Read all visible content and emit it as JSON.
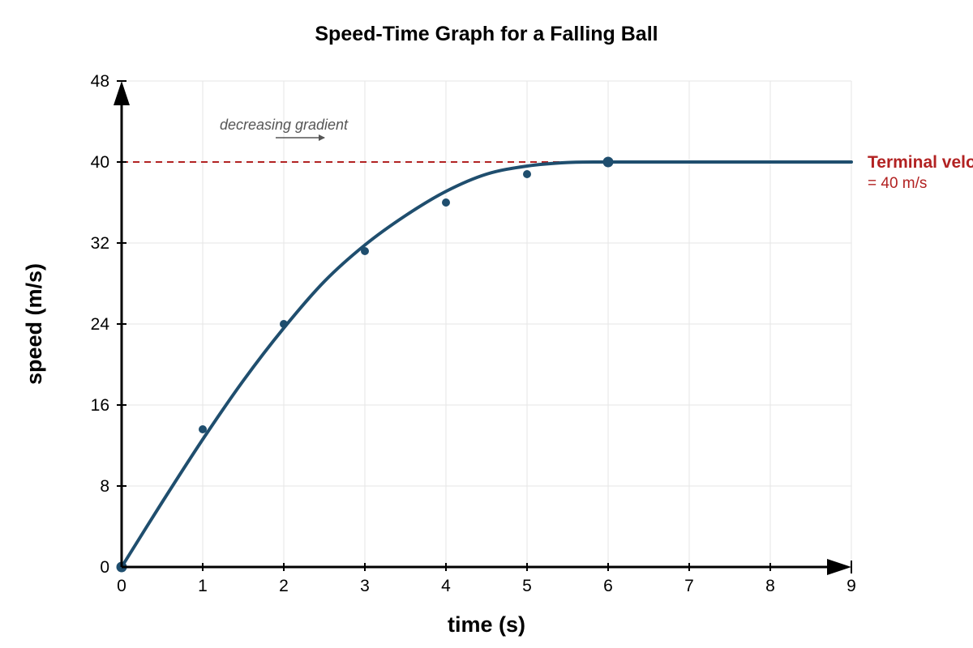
{
  "chart_data": {
    "type": "line",
    "title": "Speed-Time Graph for a Falling Ball",
    "xlabel": "time (s)",
    "ylabel": "speed (m/s)",
    "xlim": [
      0,
      9
    ],
    "ylim": [
      0,
      48
    ],
    "x_ticks": [
      0,
      1,
      2,
      3,
      4,
      5,
      6,
      7,
      8,
      9
    ],
    "y_ticks": [
      0,
      8,
      16,
      24,
      32,
      40,
      48
    ],
    "grid": true,
    "series": [
      {
        "kind": "curve",
        "x": [
          0,
          0.5,
          1,
          1.5,
          2,
          2.5,
          3,
          3.5,
          4,
          4.5,
          5,
          5.5,
          6,
          7,
          8,
          9
        ],
        "y": [
          0,
          6.4,
          12.6,
          18.4,
          23.6,
          28.2,
          31.8,
          34.7,
          37.1,
          38.8,
          39.6,
          39.95,
          40,
          40,
          40,
          40
        ]
      },
      {
        "kind": "points",
        "x": [
          1,
          2,
          3,
          4,
          5
        ],
        "y": [
          13.6,
          24,
          31.2,
          36,
          38.8
        ]
      },
      {
        "kind": "key-points",
        "x": [
          0,
          6
        ],
        "y": [
          0,
          40
        ]
      }
    ],
    "reference_line": {
      "y": 40,
      "style": "dashed",
      "x_end": 5.4
    },
    "annotations": [
      {
        "text": "decreasing gradient",
        "x": 2,
        "y": 43.5
      },
      {
        "text": "Terminal velocity",
        "subtext": "= 40 m/s",
        "y": 40
      }
    ],
    "colors": {
      "curve": "#1f4e6e",
      "points": "#1f4e6e",
      "reference": "#b22222",
      "grid": "#e6e6e6",
      "axis": "#000000",
      "annotation": "#555555"
    }
  }
}
